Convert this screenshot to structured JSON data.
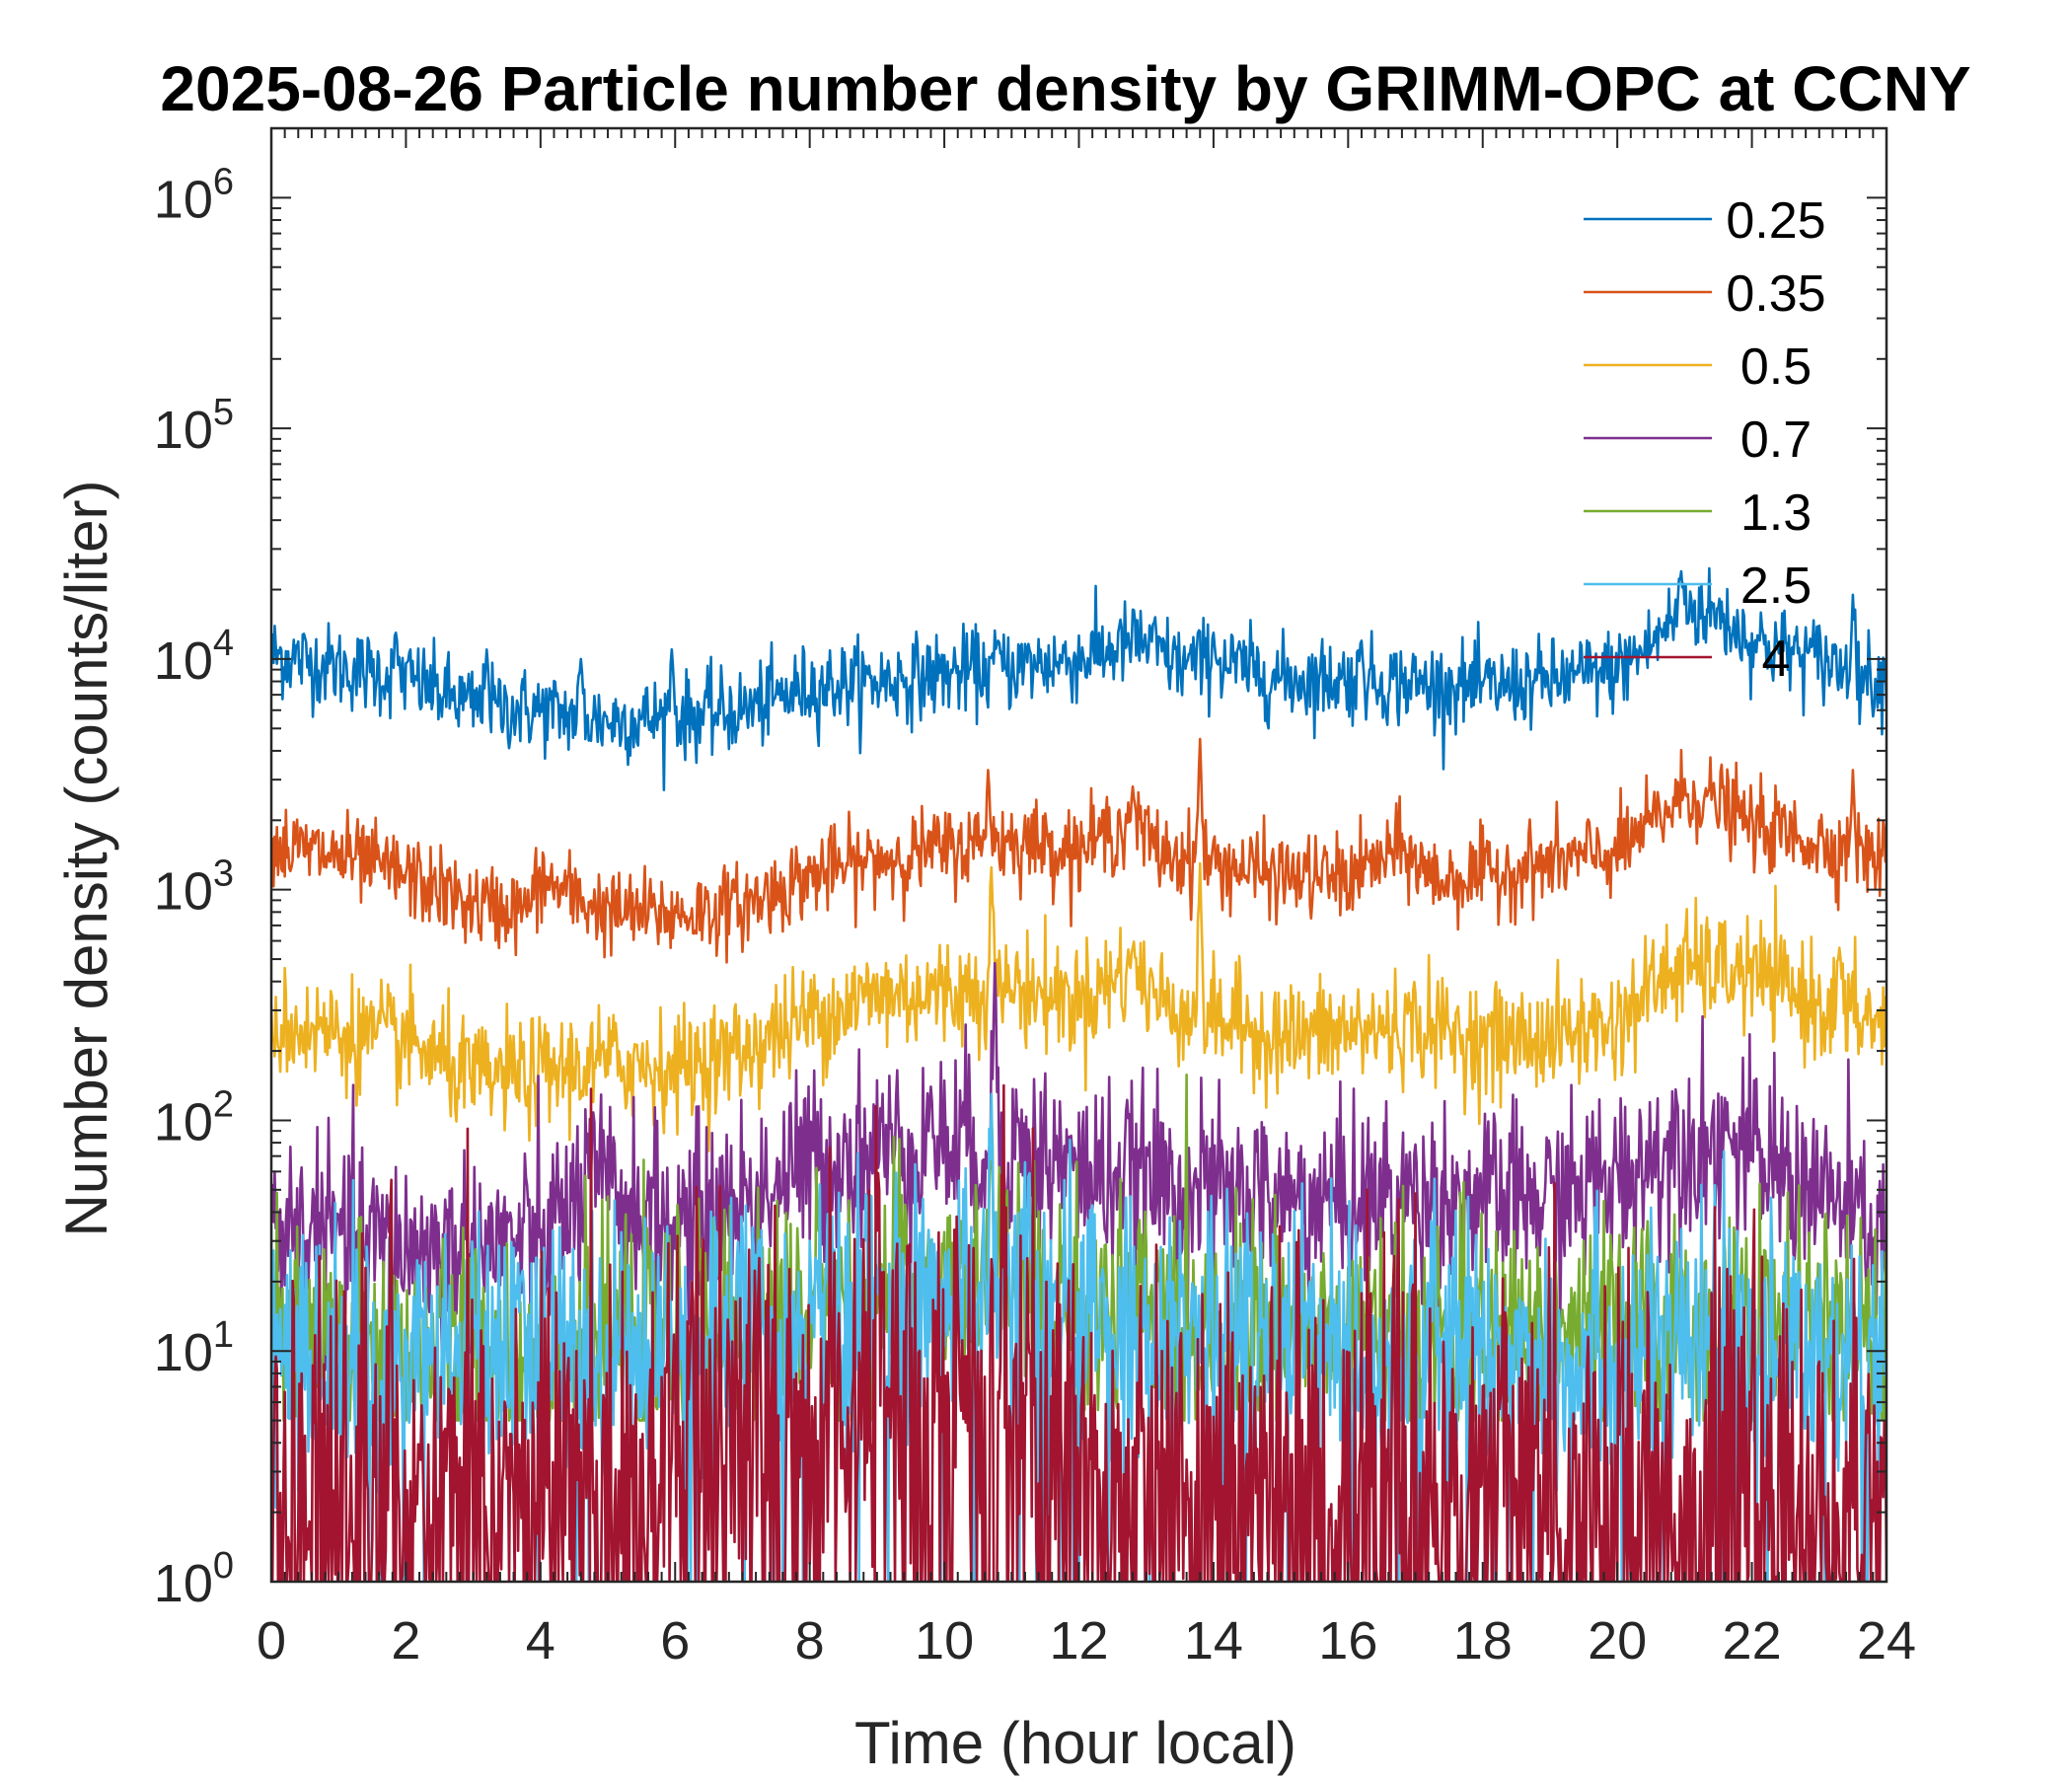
{
  "chart_data": {
    "type": "line",
    "title": "2025-08-26 Particle number density by GRIMM-OPC at CCNY",
    "xlabel": "Time (hour local)",
    "ylabel": "Number density (counts/liter)",
    "xlim": [
      0,
      24
    ],
    "ylim": [
      1,
      2000000
    ],
    "yscale": "log",
    "xticks": [
      0,
      2,
      4,
      6,
      8,
      10,
      12,
      14,
      16,
      18,
      20,
      22,
      24
    ],
    "xtick_labels": [
      "0",
      "2",
      "4",
      "6",
      "8",
      "10",
      "12",
      "14",
      "16",
      "18",
      "20",
      "22",
      "24"
    ],
    "yticks": [
      1,
      10,
      100,
      1000,
      10000,
      100000,
      1000000
    ],
    "ytick_base": "10",
    "ytick_exponents": [
      "0",
      "1",
      "2",
      "3",
      "4",
      "5",
      "6"
    ],
    "legend_position": "top-right",
    "series": [
      {
        "name": "0.25",
        "color": "#0072BD",
        "noise": 0.09,
        "points": [
          [
            0,
            10500
          ],
          [
            1,
            9200
          ],
          [
            2,
            8300
          ],
          [
            3,
            6200
          ],
          [
            4,
            6000
          ],
          [
            5,
            5400
          ],
          [
            6,
            5600
          ],
          [
            7,
            6000
          ],
          [
            8,
            7600
          ],
          [
            9,
            8000
          ],
          [
            10,
            8600
          ],
          [
            11,
            9200
          ],
          [
            12,
            10000
          ],
          [
            12.9,
            12000
          ],
          [
            13.5,
            9500
          ],
          [
            14,
            9800
          ],
          [
            15,
            8200
          ],
          [
            16,
            8200
          ],
          [
            17,
            7800
          ],
          [
            18,
            7500
          ],
          [
            19,
            8000
          ],
          [
            20,
            9000
          ],
          [
            20.5,
            11500
          ],
          [
            21,
            17000
          ],
          [
            21.5,
            15500
          ],
          [
            22,
            12000
          ],
          [
            23,
            10000
          ],
          [
            24,
            8000
          ]
        ],
        "spikes": [
          [
            1.85,
            13000
          ],
          [
            3.2,
            11000
          ],
          [
            4.6,
            10000
          ],
          [
            5.95,
            11000
          ],
          [
            10.8,
            12000
          ],
          [
            14,
            13000
          ],
          [
            16.2,
            12000
          ],
          [
            20.95,
            24000
          ],
          [
            23.5,
            19000
          ]
        ]
      },
      {
        "name": "0.35",
        "color": "#D95319",
        "noise": 0.09,
        "points": [
          [
            0,
            1550
          ],
          [
            1,
            1400
          ],
          [
            2,
            1150
          ],
          [
            3,
            850
          ],
          [
            3.8,
            820
          ],
          [
            4,
            1100
          ],
          [
            4.6,
            900
          ],
          [
            5,
            800
          ],
          [
            6,
            780
          ],
          [
            7,
            850
          ],
          [
            8,
            1150
          ],
          [
            9,
            1350
          ],
          [
            10,
            1500
          ],
          [
            11,
            1650
          ],
          [
            12,
            1500
          ],
          [
            12.8,
            2000
          ],
          [
            13.2,
            1450
          ],
          [
            14,
            1300
          ],
          [
            15,
            1150
          ],
          [
            16,
            1120
          ],
          [
            16.8,
            1500
          ],
          [
            17.3,
            1100
          ],
          [
            18,
            1150
          ],
          [
            19,
            1300
          ],
          [
            20,
            1450
          ],
          [
            20.5,
            1900
          ],
          [
            21,
            2600
          ],
          [
            21.5,
            2400
          ],
          [
            22,
            1900
          ],
          [
            23,
            1600
          ],
          [
            24,
            1350
          ]
        ],
        "spikes": [
          [
            10.65,
            3300
          ],
          [
            12.8,
            2800
          ],
          [
            13.8,
            4500
          ],
          [
            23.5,
            3300
          ]
        ]
      },
      {
        "name": "0.5",
        "color": "#EDB120",
        "noise": 0.12,
        "points": [
          [
            0,
            260
          ],
          [
            1,
            240
          ],
          [
            2,
            220
          ],
          [
            3,
            150
          ],
          [
            4,
            160
          ],
          [
            5,
            180
          ],
          [
            6,
            170
          ],
          [
            7,
            200
          ],
          [
            8,
            280
          ],
          [
            9,
            350
          ],
          [
            10,
            360
          ],
          [
            11,
            380
          ],
          [
            12,
            330
          ],
          [
            12.8,
            460
          ],
          [
            13.2,
            330
          ],
          [
            14,
            280
          ],
          [
            15,
            230
          ],
          [
            16,
            240
          ],
          [
            17,
            260
          ],
          [
            18,
            220
          ],
          [
            19,
            230
          ],
          [
            20,
            260
          ],
          [
            20.5,
            380
          ],
          [
            21,
            470
          ],
          [
            22,
            430
          ],
          [
            23,
            320
          ],
          [
            24,
            260
          ]
        ],
        "spikes": [
          [
            10.7,
            1250
          ],
          [
            13.8,
            1300
          ],
          [
            12.8,
            560
          ],
          [
            23.3,
            560
          ]
        ]
      },
      {
        "name": "0.7",
        "color": "#7E2F8E",
        "noise": 0.2,
        "points": [
          [
            0,
            35
          ],
          [
            1,
            32
          ],
          [
            2,
            28
          ],
          [
            3,
            28
          ],
          [
            4,
            30
          ],
          [
            4.8,
            55
          ],
          [
            5.5,
            40
          ],
          [
            6,
            35
          ],
          [
            7,
            45
          ],
          [
            8,
            65
          ],
          [
            9,
            75
          ],
          [
            10,
            80
          ],
          [
            11,
            78
          ],
          [
            12,
            60
          ],
          [
            13,
            55
          ],
          [
            14,
            48
          ],
          [
            15,
            45
          ],
          [
            16,
            45
          ],
          [
            17,
            48
          ],
          [
            18,
            44
          ],
          [
            19,
            45
          ],
          [
            20,
            55
          ],
          [
            21,
            85
          ],
          [
            22,
            70
          ],
          [
            23,
            50
          ],
          [
            24,
            30
          ]
        ],
        "spikes": [
          [
            10.75,
            480
          ],
          [
            9.8,
            140
          ],
          [
            21.6,
            125
          ]
        ]
      },
      {
        "name": "1.3",
        "color": "#77AC30",
        "noise": 0.25,
        "points": [
          [
            0,
            11
          ],
          [
            2,
            10
          ],
          [
            4,
            10
          ],
          [
            6,
            11
          ],
          [
            8,
            16
          ],
          [
            10,
            18
          ],
          [
            11,
            20
          ],
          [
            12,
            15
          ],
          [
            14,
            13
          ],
          [
            16,
            12
          ],
          [
            18,
            11
          ],
          [
            20,
            12
          ],
          [
            22,
            13
          ],
          [
            24,
            10
          ]
        ],
        "floor": 5,
        "spikes": [
          [
            10.7,
            110
          ]
        ]
      },
      {
        "name": "2.5",
        "color": "#4DBEEE",
        "noise": 0.28,
        "points": [
          [
            0,
            9
          ],
          [
            2,
            9
          ],
          [
            4,
            10
          ],
          [
            6,
            11
          ],
          [
            8,
            14
          ],
          [
            10,
            16
          ],
          [
            11,
            18
          ],
          [
            12,
            13
          ],
          [
            14,
            12
          ],
          [
            16,
            11
          ],
          [
            18,
            10
          ],
          [
            20,
            10
          ],
          [
            22,
            11
          ],
          [
            24,
            8
          ]
        ],
        "dropProb": 0.04,
        "spikes": [
          [
            10.7,
            130
          ]
        ]
      },
      {
        "name": "4",
        "color": "#A2142F",
        "noise": 0.45,
        "points": [
          [
            0,
            3
          ],
          [
            2,
            3
          ],
          [
            4,
            3
          ],
          [
            6,
            4
          ],
          [
            8,
            6
          ],
          [
            9,
            8
          ],
          [
            10,
            8
          ],
          [
            10.8,
            12
          ],
          [
            11.5,
            6
          ],
          [
            12,
            4
          ],
          [
            14,
            3
          ],
          [
            16,
            3
          ],
          [
            18,
            3
          ],
          [
            20,
            2.5
          ],
          [
            22,
            3
          ],
          [
            24,
            2
          ]
        ],
        "dropProb": 0.22,
        "spikes": [
          [
            10.7,
            25
          ],
          [
            9.1,
            22
          ]
        ]
      }
    ]
  }
}
